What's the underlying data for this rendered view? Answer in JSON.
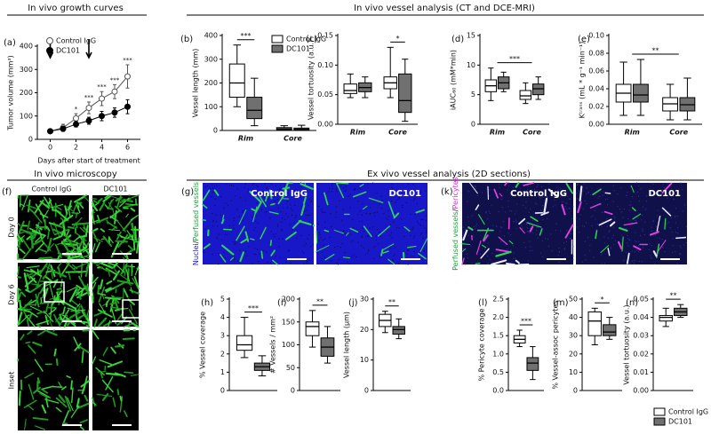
{
  "sections": [
    "In vivo growth curves",
    "In vivo vessel analysis (CT and DCE-MRI)",
    "In vivo microscopy",
    "Ex vivo vessel analysis (2D sections)"
  ],
  "images": [
    {
      "panel": "(f)",
      "columns": [
        "Control IgG",
        "DC101"
      ],
      "rows": [
        "Day 0",
        "Day 6",
        "Inset"
      ]
    },
    {
      "panel": "(g)",
      "columns": [
        "Control IgG",
        "DC101"
      ],
      "ylabel_parts": [
        "Nuclei",
        "/",
        "Perfused vessels"
      ]
    },
    {
      "panel": "(k)",
      "columns": [
        "Control IgG",
        "DC101"
      ],
      "ylabel_parts": [
        "Perfused vessels",
        "/",
        "Pericytes"
      ]
    }
  ],
  "chart_data": [
    {
      "type": "line",
      "panel": "(a)",
      "xlabel": "Days after start of treatment",
      "ylabel": "Tumor volume (mm³)",
      "xlim": [
        -1,
        7
      ],
      "xticks": [
        0,
        2,
        4,
        6
      ],
      "ylim": [
        0,
        400
      ],
      "yticks": [
        0,
        100,
        200,
        300,
        400
      ],
      "x": [
        0,
        1,
        2,
        3,
        4,
        5,
        6
      ],
      "series": [
        {
          "name": "Control IgG",
          "color": "#555555",
          "marker": "open",
          "values": [
            35,
            50,
            90,
            135,
            175,
            205,
            270
          ],
          "errors": [
            5,
            15,
            20,
            25,
            30,
            30,
            50
          ]
        },
        {
          "name": "DC101",
          "color": "#000000",
          "marker": "filled",
          "values": [
            35,
            45,
            65,
            80,
            100,
            115,
            140
          ],
          "errors": [
            5,
            10,
            12,
            15,
            20,
            20,
            30
          ]
        }
      ],
      "treatment_days": [
        0,
        3
      ],
      "annotations": [
        {
          "x": 2,
          "text": "*"
        },
        {
          "x": 3,
          "text": "***"
        },
        {
          "x": 4,
          "text": "***"
        },
        {
          "x": 5,
          "text": "***"
        },
        {
          "x": 6,
          "text": "***"
        }
      ],
      "legend": "upper left"
    },
    {
      "type": "box",
      "panel": "(b)",
      "ylabel": "Vessel length (mm)",
      "ylim": [
        0,
        400
      ],
      "yticks": [
        0,
        100,
        200,
        300,
        400
      ],
      "categories": [
        "Rim",
        "Core"
      ],
      "legend": "upper right",
      "series": [
        {
          "name": "Control IgG",
          "color": "#ffffff",
          "min": [
            100,
            0
          ],
          "q1": [
            140,
            3
          ],
          "median": [
            200,
            7
          ],
          "q3": [
            280,
            12
          ],
          "max": [
            360,
            20
          ]
        },
        {
          "name": "DC101",
          "color": "#707070",
          "min": [
            20,
            0
          ],
          "q1": [
            50,
            2
          ],
          "median": [
            85,
            4
          ],
          "q3": [
            140,
            10
          ],
          "max": [
            220,
            22
          ]
        }
      ],
      "annotations": [
        "***"
      ]
    },
    {
      "type": "box",
      "panel": "(c)",
      "ylabel": "Vessel tortuosity (a.u.)",
      "ylim": [
        0,
        0.15
      ],
      "yticks": [
        {
          "value": 0,
          "label": "0.00"
        },
        {
          "value": 0.05,
          "label": "0.05"
        },
        {
          "value": 0.1,
          "label": "0.10"
        },
        {
          "value": 0.15,
          "label": "0.15"
        }
      ],
      "categories": [
        "Rim",
        "Core"
      ],
      "series": [
        {
          "color": "#ffffff",
          "min": [
            0.045,
            0.045
          ],
          "q1": [
            0.052,
            0.06
          ],
          "median": [
            0.057,
            0.07
          ],
          "q3": [
            0.068,
            0.08
          ],
          "max": [
            0.085,
            0.13
          ]
        },
        {
          "color": "#707070",
          "min": [
            0.045,
            0.005
          ],
          "q1": [
            0.055,
            0.02
          ],
          "median": [
            0.062,
            0.04
          ],
          "q3": [
            0.07,
            0.085
          ],
          "max": [
            0.08,
            0.11
          ]
        }
      ],
      "annotations": [
        "*"
      ]
    },
    {
      "type": "box",
      "panel": "(d)",
      "ylabel": "iAUC₆₀ (mM*min)",
      "ylim": [
        0,
        15
      ],
      "yticks": [
        0,
        5,
        10,
        15
      ],
      "categories": [
        "Rim",
        "Core"
      ],
      "series": [
        {
          "color": "#ffffff",
          "min": [
            4,
            3.5
          ],
          "q1": [
            5.5,
            4.2
          ],
          "median": [
            6.5,
            4.8
          ],
          "q3": [
            7.5,
            5.7
          ],
          "max": [
            9.5,
            7
          ]
        },
        {
          "color": "#707070",
          "min": [
            5.5,
            4.2
          ],
          "q1": [
            6,
            5
          ],
          "median": [
            7,
            6
          ],
          "q3": [
            8,
            6.8
          ],
          "max": [
            8.8,
            8
          ]
        }
      ],
      "annotations": [
        "***"
      ]
    },
    {
      "type": "box",
      "panel": "(e)",
      "ylabel": "Kᵗʳᵃⁿˢ (mL * g⁻¹ min⁻¹)",
      "ylim": [
        0,
        0.1
      ],
      "yticks": [
        {
          "value": 0,
          "label": "0.00"
        },
        {
          "value": 0.02,
          "label": "0.02"
        },
        {
          "value": 0.04,
          "label": "0.04"
        },
        {
          "value": 0.06,
          "label": "0.06"
        },
        {
          "value": 0.08,
          "label": "0.08"
        },
        {
          "value": 0.1,
          "label": "0.10"
        }
      ],
      "categories": [
        "Rim",
        "Core"
      ],
      "series": [
        {
          "color": "#ffffff",
          "min": [
            0.01,
            0.005
          ],
          "q1": [
            0.025,
            0.015
          ],
          "median": [
            0.035,
            0.023
          ],
          "q3": [
            0.045,
            0.03
          ],
          "max": [
            0.07,
            0.045
          ]
        },
        {
          "color": "#707070",
          "min": [
            0.01,
            0.005
          ],
          "q1": [
            0.025,
            0.015
          ],
          "median": [
            0.033,
            0.022
          ],
          "q3": [
            0.045,
            0.03
          ],
          "max": [
            0.073,
            0.052
          ]
        }
      ],
      "annotations": [
        "**"
      ]
    },
    {
      "type": "box",
      "panel": "(h)",
      "ylabel": "% Vessel coverage",
      "ylim": [
        0,
        5
      ],
      "yticks": [
        0,
        1,
        2,
        3,
        4,
        5
      ],
      "series": [
        {
          "color": "#ffffff",
          "min": [
            1.8
          ],
          "q1": [
            2.2
          ],
          "median": [
            2.5
          ],
          "q3": [
            3.0
          ],
          "max": [
            4.0
          ]
        },
        {
          "color": "#707070",
          "min": [
            0.8
          ],
          "q1": [
            1.1
          ],
          "median": [
            1.3
          ],
          "q3": [
            1.5
          ],
          "max": [
            1.9
          ]
        }
      ],
      "annotations": [
        "***"
      ]
    },
    {
      "type": "box",
      "panel": "(i)",
      "ylabel": "# Vessels / mm²",
      "ylim": [
        0,
        200
      ],
      "yticks": [
        0,
        50,
        100,
        150,
        200
      ],
      "series": [
        {
          "color": "#ffffff",
          "min": [
            95
          ],
          "q1": [
            120
          ],
          "median": [
            140
          ],
          "q3": [
            150
          ],
          "max": [
            175
          ]
        },
        {
          "color": "#707070",
          "min": [
            60
          ],
          "q1": [
            75
          ],
          "median": [
            95
          ],
          "q3": [
            115
          ],
          "max": [
            140
          ]
        }
      ],
      "annotations": [
        "**"
      ]
    },
    {
      "type": "box",
      "panel": "(j)",
      "ylabel": "Vessel length (µm)",
      "ylim": [
        0,
        30
      ],
      "yticks": [
        0,
        10,
        20,
        30
      ],
      "series": [
        {
          "color": "#ffffff",
          "min": [
            19
          ],
          "q1": [
            21
          ],
          "median": [
            23
          ],
          "q3": [
            25
          ],
          "max": [
            26
          ]
        },
        {
          "color": "#707070",
          "min": [
            17
          ],
          "q1": [
            18.5
          ],
          "median": [
            20
          ],
          "q3": [
            21
          ],
          "max": [
            23.5
          ]
        }
      ],
      "annotations": [
        "**"
      ]
    },
    {
      "type": "box",
      "panel": "(l)",
      "ylabel": "% Pericyte coverage",
      "ylim": [
        0,
        2.5
      ],
      "yticks": [
        {
          "value": 0,
          "label": "0.0"
        },
        {
          "value": 0.5,
          "label": "0.5"
        },
        {
          "value": 1,
          "label": "1.0"
        },
        {
          "value": 1.5,
          "label": "1.5"
        },
        {
          "value": 2,
          "label": "2.0"
        },
        {
          "value": 2.5,
          "label": "2.5"
        }
      ],
      "series": [
        {
          "color": "#ffffff",
          "min": [
            1.2
          ],
          "q1": [
            1.3
          ],
          "median": [
            1.4
          ],
          "q3": [
            1.5
          ],
          "max": [
            1.65
          ]
        },
        {
          "color": "#707070",
          "min": [
            0.3
          ],
          "q1": [
            0.55
          ],
          "median": [
            0.75
          ],
          "q3": [
            0.9
          ],
          "max": [
            1.2
          ]
        }
      ],
      "annotations": [
        "***"
      ]
    },
    {
      "type": "box",
      "panel": "(m)",
      "ylabel": "% Vessel-assoc pericytes",
      "ylim": [
        0,
        50
      ],
      "yticks": [
        0,
        10,
        20,
        30,
        40,
        50
      ],
      "series": [
        {
          "color": "#ffffff",
          "min": [
            25
          ],
          "q1": [
            30
          ],
          "median": [
            38
          ],
          "q3": [
            43
          ],
          "max": [
            45
          ]
        },
        {
          "color": "#707070",
          "min": [
            28
          ],
          "q1": [
            30
          ],
          "median": [
            32
          ],
          "q3": [
            36
          ],
          "max": [
            40
          ]
        }
      ],
      "annotations": [
        "*"
      ]
    },
    {
      "type": "box",
      "panel": "(n)",
      "ylabel": "Vessel tortuosity (a.u.)",
      "ylim": [
        0,
        0.05
      ],
      "yticks": [
        {
          "value": 0,
          "label": "0.00"
        },
        {
          "value": 0.01,
          "label": "0.01"
        },
        {
          "value": 0.02,
          "label": "0.02"
        },
        {
          "value": 0.03,
          "label": "0.03"
        },
        {
          "value": 0.04,
          "label": "0.04"
        },
        {
          "value": 0.05,
          "label": "0.05"
        }
      ],
      "legend": "below",
      "series": [
        {
          "name": "Control IgG",
          "color": "#ffffff",
          "min": [
            0.035
          ],
          "q1": [
            0.038
          ],
          "median": [
            0.04
          ],
          "q3": [
            0.041
          ],
          "max": [
            0.045
          ]
        },
        {
          "name": "DC101",
          "color": "#707070",
          "min": [
            0.04
          ],
          "q1": [
            0.041
          ],
          "median": [
            0.043
          ],
          "q3": [
            0.045
          ],
          "max": [
            0.047
          ]
        }
      ],
      "annotations": [
        "**"
      ]
    }
  ]
}
